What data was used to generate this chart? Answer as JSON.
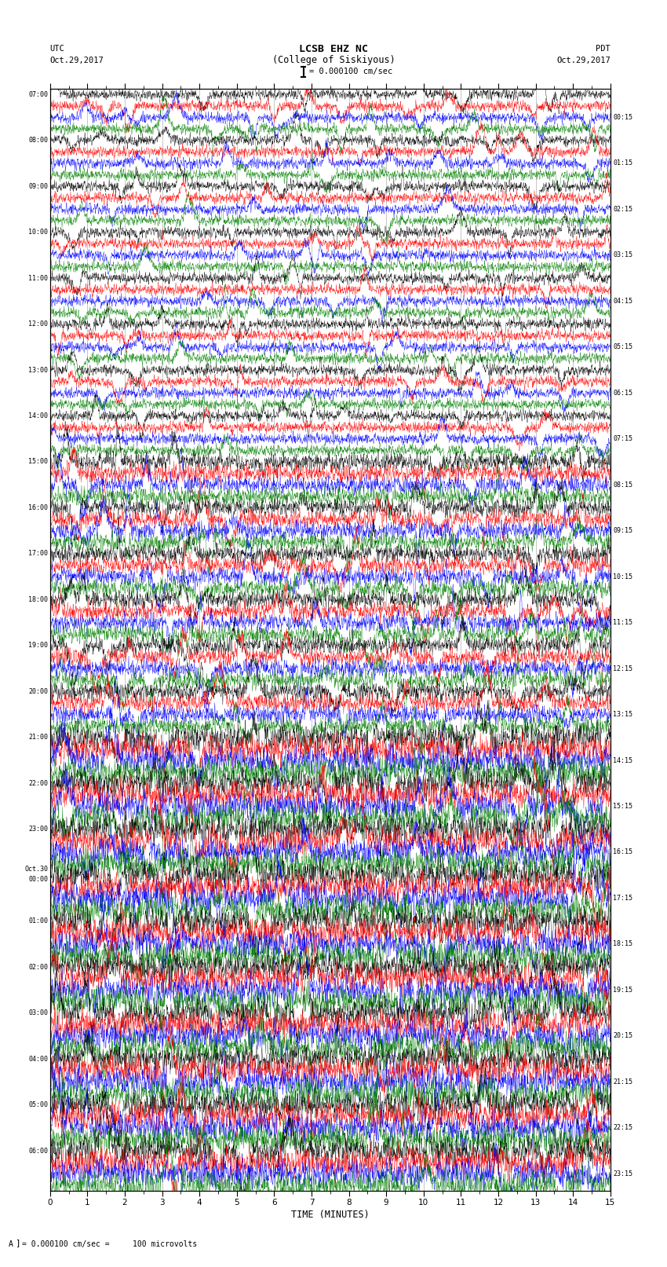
{
  "title_line1": "LCSB EHZ NC",
  "title_line2": "(College of Siskiyous)",
  "scale_text": "= 0.000100 cm/sec",
  "utc_label": "UTC",
  "utc_date": "Oct.29,2017",
  "pdt_label": "PDT",
  "pdt_date": "Oct.29,2017",
  "xlabel": "TIME (MINUTES)",
  "footer": "A  I = 0.000100 cm/sec =     100 microvolts",
  "left_times": [
    "07:00",
    "08:00",
    "09:00",
    "10:00",
    "11:00",
    "12:00",
    "13:00",
    "14:00",
    "15:00",
    "16:00",
    "17:00",
    "18:00",
    "19:00",
    "20:00",
    "21:00",
    "22:00",
    "23:00",
    "Oct.30\n00:00",
    "01:00",
    "02:00",
    "03:00",
    "04:00",
    "05:00",
    "06:00"
  ],
  "right_times": [
    "00:15",
    "01:15",
    "02:15",
    "03:15",
    "04:15",
    "05:15",
    "06:15",
    "07:15",
    "08:15",
    "09:15",
    "10:15",
    "11:15",
    "12:15",
    "13:15",
    "14:15",
    "15:15",
    "16:15",
    "17:15",
    "18:15",
    "19:15",
    "20:15",
    "21:15",
    "22:15",
    "23:15"
  ],
  "num_trace_groups": 24,
  "traces_per_group": 4,
  "row_colors": [
    "black",
    "red",
    "blue",
    "green"
  ],
  "time_minutes": 15,
  "samples": 2700,
  "background_color": "white",
  "grid_color": "#999999",
  "figsize": [
    8.5,
    16.13
  ],
  "dpi": 100,
  "trace_amplitude": 0.32,
  "spike_amplitude": 0.7
}
